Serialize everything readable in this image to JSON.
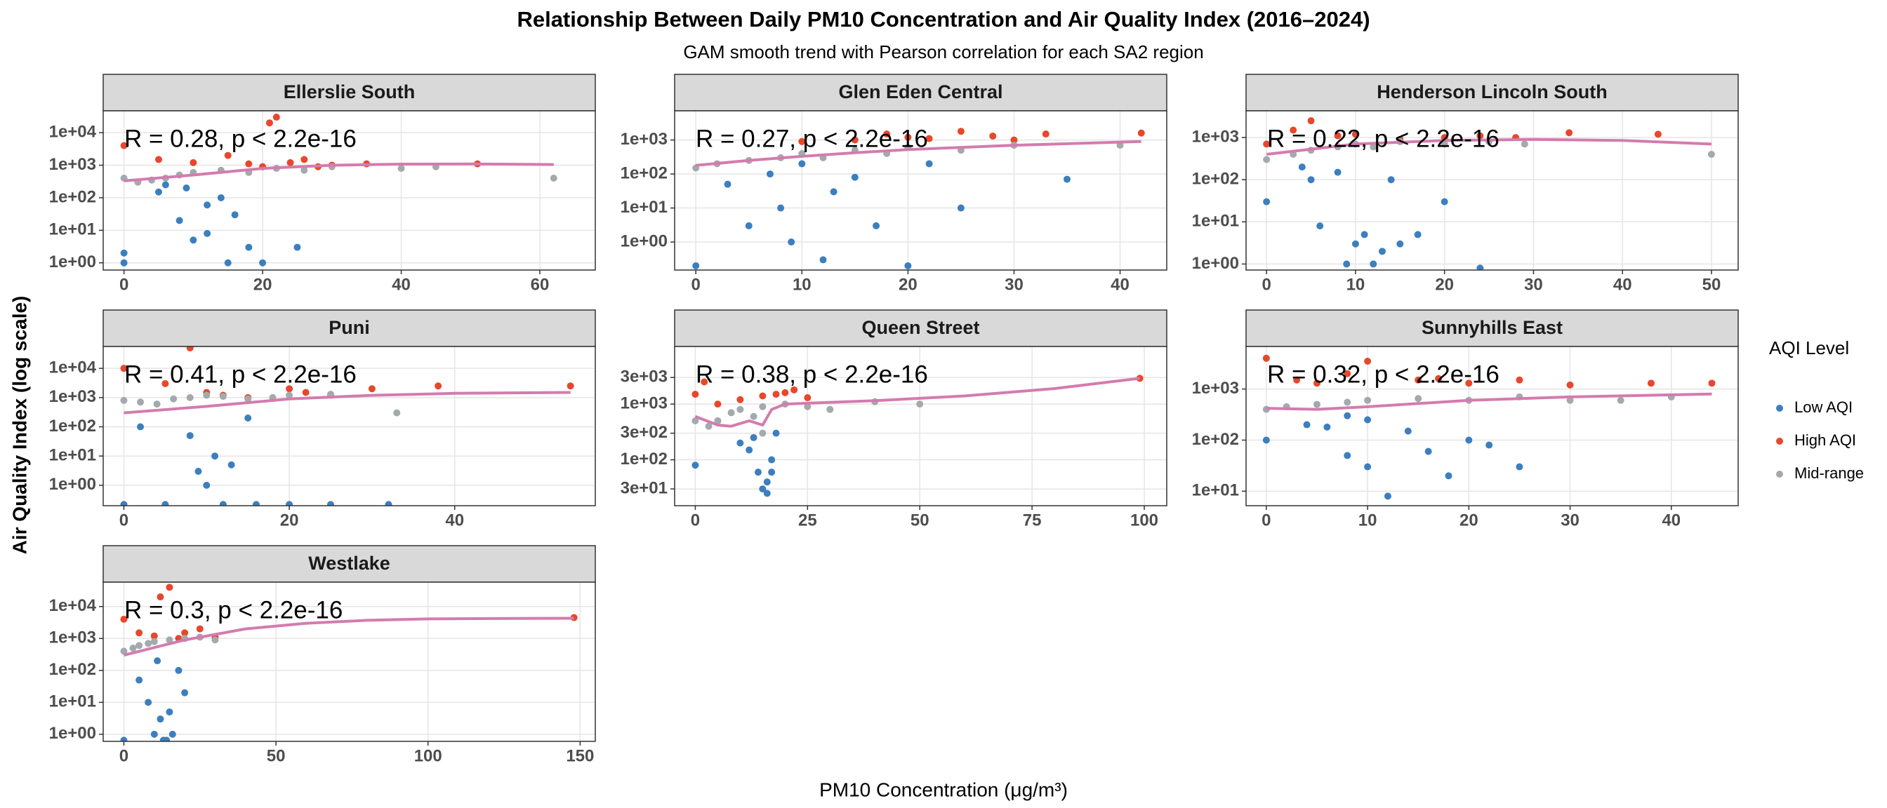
{
  "title": "Relationship Between Daily  PM10  Concentration and Air Quality Index (2016–2024)",
  "subtitle": "GAM smooth trend with Pearson correlation for each SA2 region",
  "x_label": "PM10 Concentration (μg/m³)",
  "y_label": "Air Quality Index (log scale)",
  "legend_title": "AQI Level",
  "legend_position": "right",
  "chart_data": [
    {
      "type": "scatter",
      "title": "Ellerslie South",
      "annotation": "R = 0.28, p < 2.2e-16",
      "log_y": true,
      "grid": true,
      "xlim": [
        -3,
        68
      ],
      "xticks": [
        0,
        20,
        40,
        60
      ],
      "ylim": [
        0.6,
        47000
      ],
      "yticks": [
        {
          "value": 1,
          "label": "1e+00"
        },
        {
          "value": 10,
          "label": "1e+01"
        },
        {
          "value": 100,
          "label": "1e+02"
        },
        {
          "value": 1000,
          "label": "1e+03"
        },
        {
          "value": 10000,
          "label": "1e+04"
        }
      ],
      "series": [
        {
          "name": "Low AQI",
          "color": "#3c7fbf",
          "x": [
            0,
            0,
            5,
            8,
            10,
            12,
            14,
            15,
            16,
            18,
            20,
            25,
            12,
            9,
            6
          ],
          "values": [
            2,
            1,
            150,
            20,
            5,
            8,
            100,
            1,
            30,
            3,
            1,
            3,
            60,
            200,
            250
          ]
        },
        {
          "name": "High AQI",
          "color": "#e8472b",
          "x": [
            0,
            5,
            10,
            15,
            18,
            20,
            22,
            24,
            26,
            28,
            30,
            35,
            51,
            21
          ],
          "values": [
            4000,
            1500,
            1200,
            2000,
            1100,
            900,
            30000,
            1200,
            1500,
            900,
            1000,
            1100,
            1100,
            20000
          ]
        },
        {
          "name": "Mid-range",
          "color": "#a3aaad",
          "x": [
            0,
            2,
            4,
            6,
            8,
            10,
            14,
            18,
            22,
            26,
            30,
            40,
            62,
            45
          ],
          "values": [
            400,
            300,
            350,
            400,
            500,
            600,
            700,
            600,
            800,
            700,
            900,
            800,
            400,
            900
          ]
        }
      ],
      "smooth": {
        "color": "#d47bae",
        "x": [
          0,
          10,
          20,
          30,
          40,
          50,
          62
        ],
        "values": [
          330,
          500,
          800,
          1000,
          1080,
          1090,
          1050
        ]
      }
    },
    {
      "type": "scatter",
      "title": "Glen Eden Central",
      "annotation": "R = 0.27, p < 2.2e-16",
      "log_y": true,
      "grid": true,
      "xlim": [
        -2,
        44.4
      ],
      "xticks": [
        0,
        10,
        20,
        30,
        40
      ],
      "ylim": [
        0.15,
        7200
      ],
      "yticks": [
        {
          "value": 1,
          "label": "1e+00"
        },
        {
          "value": 10,
          "label": "1e+01"
        },
        {
          "value": 100,
          "label": "1e+02"
        },
        {
          "value": 1000,
          "label": "1e+03"
        }
      ],
      "series": [
        {
          "name": "Low AQI",
          "color": "#3c7fbf",
          "x": [
            0,
            3,
            5,
            7,
            8,
            10,
            12,
            13,
            15,
            17,
            20,
            22,
            25,
            35,
            9
          ],
          "values": [
            0.2,
            50,
            3,
            100,
            10,
            200,
            0.3,
            30,
            80,
            3,
            0.2,
            200,
            10,
            70,
            1
          ]
        },
        {
          "name": "High AQI",
          "color": "#e8472b",
          "x": [
            10,
            15,
            18,
            20,
            22,
            25,
            28,
            30,
            33,
            42
          ],
          "values": [
            900,
            1000,
            1500,
            1200,
            1100,
            1800,
            1300,
            1000,
            1500,
            1600
          ]
        },
        {
          "name": "Mid-range",
          "color": "#a3aaad",
          "x": [
            0,
            2,
            5,
            8,
            10,
            12,
            15,
            18,
            20,
            25,
            30,
            40
          ],
          "values": [
            150,
            200,
            250,
            300,
            400,
            300,
            500,
            400,
            600,
            500,
            700,
            700
          ]
        }
      ],
      "smooth": {
        "color": "#d47bae",
        "x": [
          0,
          5,
          10,
          15,
          20,
          30,
          42
        ],
        "values": [
          180,
          250,
          330,
          420,
          520,
          700,
          900
        ]
      }
    },
    {
      "type": "scatter",
      "title": "Henderson Lincoln South",
      "annotation": "R = 0.22, p < 2.2e-16",
      "log_y": true,
      "grid": true,
      "xlim": [
        -2.3,
        53
      ],
      "xticks": [
        0,
        10,
        20,
        30,
        40,
        50
      ],
      "ylim": [
        0.72,
        4300
      ],
      "yticks": [
        {
          "value": 1,
          "label": "1e+00"
        },
        {
          "value": 10,
          "label": "1e+01"
        },
        {
          "value": 100,
          "label": "1e+02"
        },
        {
          "value": 1000,
          "label": "1e+03"
        }
      ],
      "series": [
        {
          "name": "Low AQI",
          "color": "#3c7fbf",
          "x": [
            0,
            4,
            6,
            8,
            9,
            10,
            11,
            12,
            13,
            14,
            15,
            17,
            20,
            24,
            5
          ],
          "values": [
            30,
            200,
            8,
            150,
            1,
            3,
            5,
            1,
            2,
            100,
            3,
            5,
            30,
            0.8,
            100
          ]
        },
        {
          "name": "High AQI",
          "color": "#e8472b",
          "x": [
            0,
            3,
            5,
            8,
            10,
            15,
            20,
            24,
            28,
            34,
            44
          ],
          "values": [
            700,
            1500,
            2500,
            1100,
            1200,
            900,
            1000,
            1100,
            1000,
            1300,
            1200
          ]
        },
        {
          "name": "Mid-range",
          "color": "#a3aaad",
          "x": [
            0,
            3,
            5,
            8,
            10,
            12,
            15,
            20,
            25,
            29,
            50
          ],
          "values": [
            300,
            400,
            500,
            600,
            700,
            600,
            800,
            700,
            800,
            700,
            400
          ]
        }
      ],
      "smooth": {
        "color": "#d47bae",
        "x": [
          0,
          10,
          20,
          30,
          40,
          50
        ],
        "values": [
          400,
          700,
          850,
          900,
          850,
          700
        ]
      }
    },
    {
      "type": "scatter",
      "title": "Puni",
      "annotation": "R = 0.41, p < 2.2e-16",
      "log_y": true,
      "grid": true,
      "xlim": [
        -2.5,
        57
      ],
      "xticks": [
        0,
        20,
        40
      ],
      "ylim": [
        0.2,
        56000
      ],
      "yticks": [
        {
          "value": 1,
          "label": "1e+00"
        },
        {
          "value": 10,
          "label": "1e+01"
        },
        {
          "value": 100,
          "label": "1e+02"
        },
        {
          "value": 1000,
          "label": "1e+03"
        },
        {
          "value": 10000,
          "label": "1e+04"
        }
      ],
      "series": [
        {
          "name": "Low AQI",
          "color": "#3c7fbf",
          "x": [
            0,
            2,
            5,
            8,
            9,
            10,
            11,
            12,
            13,
            15,
            16,
            20,
            25,
            32
          ],
          "values": [
            0.22,
            100,
            0.22,
            50,
            3,
            1,
            10,
            0.22,
            5,
            200,
            0.22,
            0.22,
            0.22,
            0.22
          ]
        },
        {
          "name": "High AQI",
          "color": "#e8472b",
          "x": [
            0,
            5,
            8,
            10,
            12,
            15,
            20,
            22,
            25,
            30,
            38,
            54
          ],
          "values": [
            10000,
            3000,
            50000,
            1500,
            1200,
            1000,
            2000,
            1500,
            1200,
            2000,
            2500,
            2500
          ]
        },
        {
          "name": "Mid-range",
          "color": "#a3aaad",
          "x": [
            0,
            2,
            4,
            6,
            8,
            10,
            12,
            15,
            18,
            20,
            25,
            33
          ],
          "values": [
            800,
            700,
            600,
            900,
            1000,
            1200,
            1100,
            900,
            1000,
            1200,
            1300,
            300
          ]
        }
      ],
      "smooth": {
        "color": "#d47bae",
        "x": [
          0,
          10,
          20,
          30,
          40,
          54
        ],
        "values": [
          300,
          500,
          900,
          1200,
          1400,
          1500
        ]
      }
    },
    {
      "type": "scatter",
      "title": "Queen Street",
      "annotation": "R = 0.38, p < 2.2e-16",
      "log_y": true,
      "grid": true,
      "xlim": [
        -4.6,
        105
      ],
      "xticks": [
        0,
        25,
        50,
        75,
        100
      ],
      "ylim": [
        15,
        10800
      ],
      "yticks": [
        {
          "value": 30,
          "label": "3e+01"
        },
        {
          "value": 100,
          "label": "1e+02"
        },
        {
          "value": 300,
          "label": "3e+02"
        },
        {
          "value": 1000,
          "label": "1e+03"
        },
        {
          "value": 3000,
          "label": "3e+03"
        }
      ],
      "series": [
        {
          "name": "Low AQI",
          "color": "#3c7fbf",
          "x": [
            0,
            10,
            12,
            14,
            15,
            16,
            16,
            17,
            17,
            18,
            13,
            5
          ],
          "values": [
            80,
            200,
            150,
            60,
            30,
            40,
            25,
            60,
            100,
            300,
            250,
            500
          ]
        },
        {
          "name": "High AQI",
          "color": "#e8472b",
          "x": [
            0,
            2,
            5,
            10,
            15,
            18,
            20,
            22,
            25,
            99
          ],
          "values": [
            1500,
            2500,
            1000,
            1200,
            1400,
            1500,
            1600,
            1800,
            1300,
            2900
          ]
        },
        {
          "name": "Mid-range",
          "color": "#a3aaad",
          "x": [
            0,
            3,
            5,
            8,
            10,
            13,
            15,
            20,
            25,
            30,
            40,
            50,
            15
          ],
          "values": [
            500,
            400,
            500,
            700,
            800,
            600,
            900,
            1000,
            900,
            800,
            1100,
            1000,
            300
          ]
        }
      ],
      "smooth": {
        "color": "#d47bae",
        "x": [
          0,
          5,
          8,
          12,
          15,
          17,
          20,
          40,
          60,
          80,
          99
        ],
        "values": [
          600,
          420,
          400,
          500,
          420,
          800,
          1000,
          1150,
          1400,
          1900,
          2900
        ]
      }
    },
    {
      "type": "scatter",
      "title": "Sunnyhills East",
      "annotation": "R = 0.32, p < 2.2e-16",
      "log_y": true,
      "grid": true,
      "xlim": [
        -2,
        46.6
      ],
      "xticks": [
        0,
        10,
        20,
        30,
        40
      ],
      "ylim": [
        5.2,
        6800
      ],
      "yticks": [
        {
          "value": 10,
          "label": "1e+01"
        },
        {
          "value": 100,
          "label": "1e+02"
        },
        {
          "value": 1000,
          "label": "1e+03"
        }
      ],
      "series": [
        {
          "name": "Low AQI",
          "color": "#3c7fbf",
          "x": [
            0,
            4,
            6,
            8,
            10,
            12,
            14,
            16,
            20,
            22,
            25,
            10,
            8,
            18
          ],
          "values": [
            100,
            200,
            180,
            50,
            30,
            8,
            150,
            60,
            100,
            80,
            30,
            250,
            300,
            20
          ]
        },
        {
          "name": "High AQI",
          "color": "#e8472b",
          "x": [
            0,
            3,
            5,
            8,
            10,
            15,
            17,
            20,
            25,
            30,
            38,
            44
          ],
          "values": [
            4000,
            1500,
            1300,
            2000,
            3500,
            1500,
            1600,
            1300,
            1500,
            1200,
            1300,
            1300
          ]
        },
        {
          "name": "Mid-range",
          "color": "#a3aaad",
          "x": [
            0,
            2,
            5,
            8,
            10,
            15,
            20,
            25,
            30,
            35,
            40
          ],
          "values": [
            400,
            450,
            500,
            550,
            600,
            650,
            600,
            700,
            600,
            600,
            700
          ]
        }
      ],
      "smooth": {
        "color": "#d47bae",
        "x": [
          0,
          5,
          10,
          20,
          30,
          44
        ],
        "values": [
          420,
          400,
          450,
          600,
          700,
          800
        ]
      }
    },
    {
      "type": "scatter",
      "title": "Westlake",
      "annotation": "R = 0.3, p < 2.2e-16",
      "log_y": true,
      "grid": true,
      "xlim": [
        -6.8,
        155
      ],
      "xticks": [
        0,
        50,
        100,
        150
      ],
      "ylim": [
        0.6,
        58000
      ],
      "yticks": [
        {
          "value": 1,
          "label": "1e+00"
        },
        {
          "value": 10,
          "label": "1e+01"
        },
        {
          "value": 100,
          "label": "1e+02"
        },
        {
          "value": 1000,
          "label": "1e+03"
        },
        {
          "value": 10000,
          "label": "1e+04"
        }
      ],
      "series": [
        {
          "name": "Low AQI",
          "color": "#3c7fbf",
          "x": [
            0,
            5,
            8,
            10,
            12,
            14,
            15,
            16,
            18,
            20,
            13,
            11
          ],
          "values": [
            0.65,
            50,
            10,
            1,
            3,
            0.65,
            5,
            1,
            100,
            20,
            0.65,
            200
          ]
        },
        {
          "name": "High AQI",
          "color": "#e8472b",
          "x": [
            0,
            5,
            10,
            12,
            15,
            18,
            20,
            25,
            30,
            148
          ],
          "values": [
            4000,
            1500,
            1200,
            20000,
            40000,
            1000,
            1500,
            2000,
            1100,
            4500
          ]
        },
        {
          "name": "Mid-range",
          "color": "#a3aaad",
          "x": [
            0,
            3,
            5,
            8,
            10,
            15,
            20,
            25,
            30
          ],
          "values": [
            400,
            500,
            600,
            700,
            800,
            900,
            1000,
            1100,
            900
          ]
        }
      ],
      "smooth": {
        "color": "#d47bae",
        "x": [
          0,
          20,
          40,
          60,
          80,
          100,
          120,
          148
        ],
        "values": [
          300,
          900,
          2000,
          3000,
          3700,
          4100,
          4200,
          4300
        ]
      }
    }
  ]
}
